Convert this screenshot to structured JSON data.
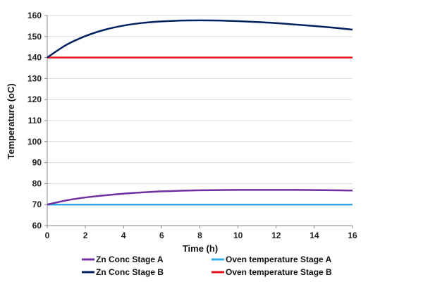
{
  "chart_data": {
    "type": "line",
    "xlabel": "Time (h)",
    "ylabel": "Temperature (oC)",
    "xlim": [
      0,
      16
    ],
    "ylim": [
      60,
      160
    ],
    "x_ticks": [
      0,
      2,
      4,
      6,
      8,
      10,
      12,
      14,
      16
    ],
    "y_ticks": [
      60,
      70,
      80,
      90,
      100,
      110,
      120,
      130,
      140,
      150,
      160
    ],
    "grid": "horizontal",
    "legend_position": "bottom",
    "series": [
      {
        "name": "Zn Conc Stage A",
        "color": "#7030A0",
        "x": [
          0,
          1,
          2,
          3,
          4,
          5,
          6,
          7,
          8,
          9,
          10,
          11,
          12,
          13,
          14,
          15,
          16
        ],
        "values": [
          70,
          72,
          73.4,
          74.4,
          75.2,
          75.8,
          76.3,
          76.6,
          76.8,
          76.9,
          77,
          77,
          77,
          77,
          76.9,
          76.8,
          76.7
        ]
      },
      {
        "name": "Zn Conc Stage B",
        "color": "#002060",
        "x": [
          0,
          1,
          2,
          3,
          4,
          5,
          6,
          7,
          8,
          9,
          10,
          11,
          12,
          13,
          14,
          15,
          16
        ],
        "values": [
          140,
          146,
          150.2,
          153.2,
          155.2,
          156.5,
          157.2,
          157.6,
          157.7,
          157.6,
          157.3,
          156.9,
          156.4,
          155.7,
          155,
          154.2,
          153.3
        ]
      },
      {
        "name": "Oven temperature Stage A",
        "color": "#33A9E0",
        "x": [
          0,
          16
        ],
        "values": [
          70,
          70
        ]
      },
      {
        "name": "Oven temperature Stage B",
        "color": "#E3151B",
        "x": [
          0,
          16
        ],
        "values": [
          140,
          140
        ]
      }
    ]
  }
}
